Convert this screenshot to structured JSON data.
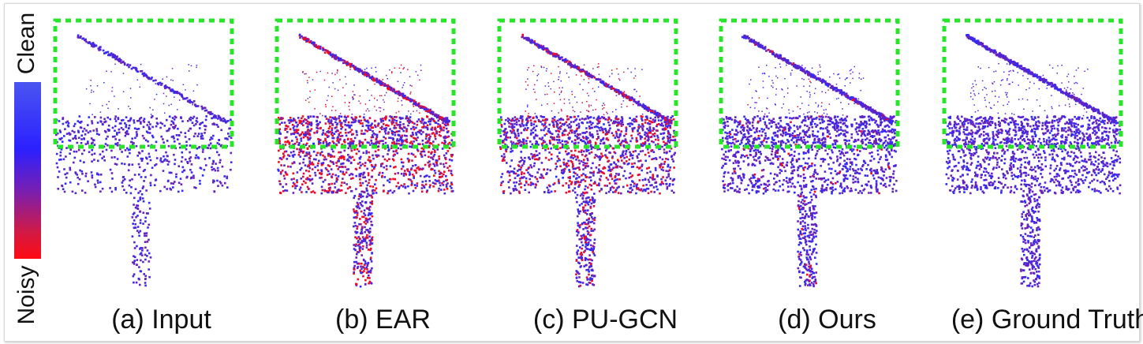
{
  "colorbar": {
    "top_label": "Clean",
    "bottom_label": "Noisy",
    "clean_color": "#2b2bff",
    "noisy_color": "#ff0a14"
  },
  "highlight_color": "#27e627",
  "panels": [
    {
      "id": "input",
      "caption": "(a) Input",
      "noise_level": 0.0,
      "density": 0.45
    },
    {
      "id": "ear",
      "caption": "(b) EAR",
      "noise_level": 0.35,
      "density": 1.0
    },
    {
      "id": "pugcn",
      "caption": "(c) PU-GCN",
      "noise_level": 0.25,
      "density": 1.0
    },
    {
      "id": "ours",
      "caption": "(d) Ours",
      "noise_level": 0.04,
      "density": 1.0
    },
    {
      "id": "gt",
      "caption": "(e) Ground Truth",
      "noise_level": 0.0,
      "density": 1.0
    }
  ]
}
